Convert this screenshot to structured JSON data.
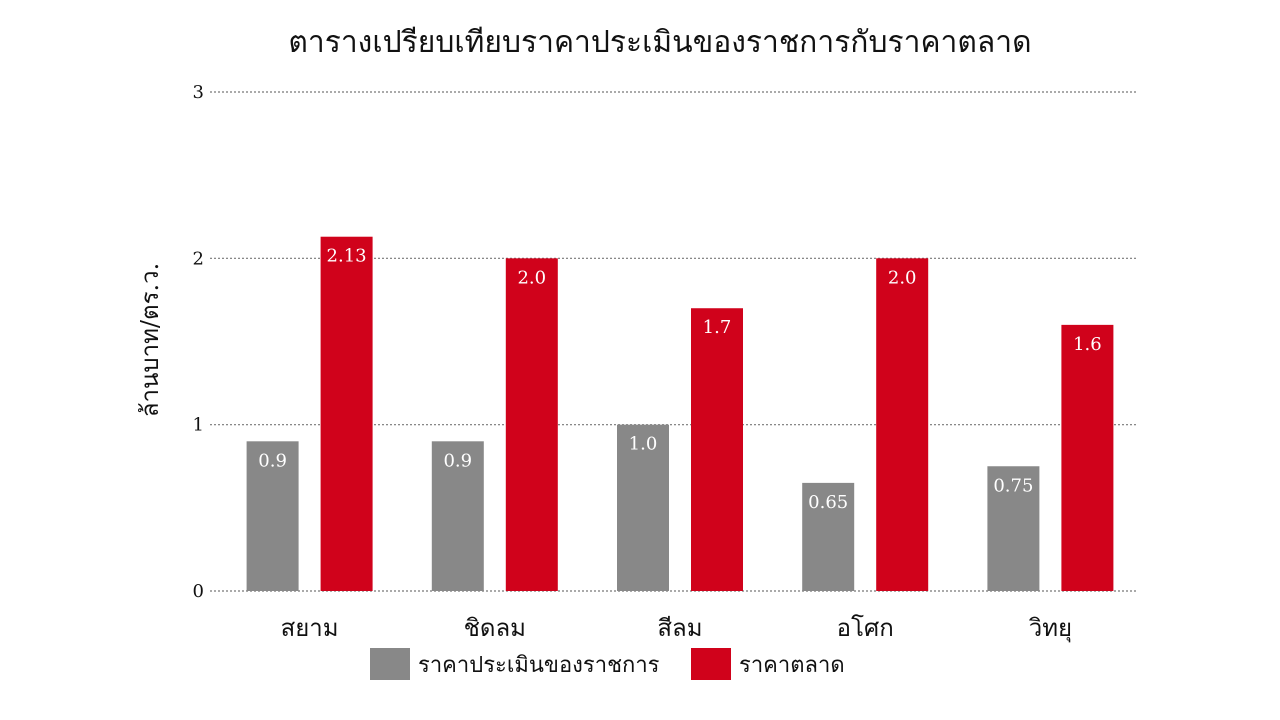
{
  "chart_data": {
    "type": "bar",
    "title": "ตารางเปรียบเทียบราคาประเมินของราชการกับราคาตลาด",
    "ylabel": "ล้านบาท/ตร.ว.",
    "xlabel": "",
    "categories": [
      "สยาม",
      "ชิดลม",
      "สีลม",
      "อโศก",
      "วิทยุ"
    ],
    "ylim": [
      0,
      3
    ],
    "yticks": [
      0,
      1,
      2,
      3
    ],
    "grid": "dotted-horizontal",
    "legend_position": "bottom",
    "series": [
      {
        "name": "ราคาประเมินของราชการ",
        "color": "#888888",
        "values": [
          0.9,
          0.9,
          1.0,
          0.65,
          0.75
        ],
        "labels": [
          "0.9",
          "0.9",
          "1.0",
          "0.65",
          "0.75"
        ]
      },
      {
        "name": "ราคาตลาด",
        "color": "#D0021B",
        "values": [
          2.13,
          2.0,
          1.7,
          2.0,
          1.6
        ],
        "labels": [
          "2.13",
          "2.0",
          "1.7",
          "2.0",
          "1.6"
        ]
      }
    ]
  }
}
